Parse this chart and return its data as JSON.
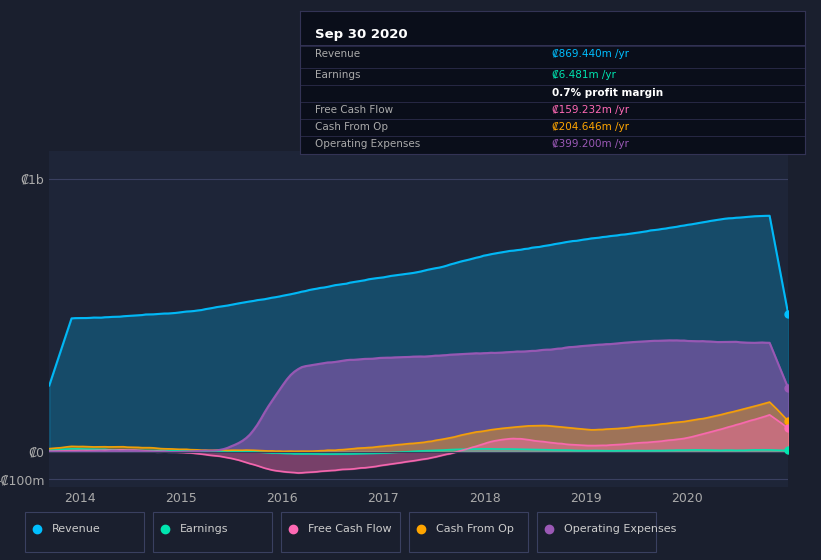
{
  "bg_color": "#1a1f2e",
  "plot_bg_color": "#1e2538",
  "grid_color": "#2a3050",
  "ylabel_1b": "₡1b",
  "ylabel_0": "₡0",
  "ylabel_neg100m": "-₡100m",
  "x_ticks": [
    2014,
    2015,
    2016,
    2017,
    2018,
    2019,
    2020
  ],
  "legend_labels": [
    "Revenue",
    "Earnings",
    "Free Cash Flow",
    "Cash From Op",
    "Operating Expenses"
  ],
  "legend_colors": [
    "#00bfff",
    "#00e5b0",
    "#ff69b4",
    "#ffa500",
    "#9b59b6"
  ],
  "info_box": {
    "title": "Sep 30 2020",
    "rows": [
      {
        "label": "Revenue",
        "value": "₡869.440m /yr",
        "color": "#00bfff"
      },
      {
        "label": "Earnings",
        "value": "₡6.481m /yr",
        "color": "#00e5b0"
      },
      {
        "label": "",
        "value": "0.7% profit margin",
        "color": "#ffffff"
      },
      {
        "label": "Free Cash Flow",
        "value": "₡159.232m /yr",
        "color": "#ff69b4"
      },
      {
        "label": "Cash From Op",
        "value": "₡204.646m /yr",
        "color": "#ffa500"
      },
      {
        "label": "Operating Expenses",
        "value": "₡399.200m /yr",
        "color": "#9b59b6"
      }
    ]
  },
  "ylim": [
    -130000000,
    1100000000
  ],
  "xlim": [
    2013.7,
    2021.0
  ],
  "revenue_color": "#00bfff",
  "earnings_color": "#00e5b0",
  "fcf_color": "#ff69b4",
  "cashfromop_color": "#ffa500",
  "opex_color": "#9b59b6"
}
